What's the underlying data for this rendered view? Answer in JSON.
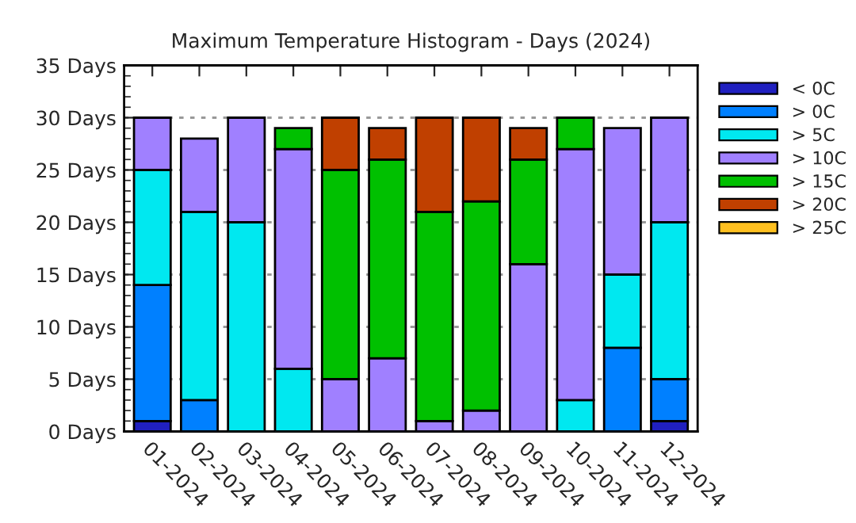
{
  "chart_data": {
    "type": "bar",
    "title": "Maximum Temperature Histogram - Days (2024)",
    "categories": [
      "01-2024",
      "02-2024",
      "03-2024",
      "04-2024",
      "05-2024",
      "06-2024",
      "07-2024",
      "08-2024",
      "09-2024",
      "10-2024",
      "11-2024",
      "12-2024"
    ],
    "stacked": true,
    "series": [
      {
        "name": "< 0C",
        "color": "#2020c0",
        "values": [
          1,
          0,
          0,
          0,
          0,
          0,
          0,
          0,
          0,
          0,
          0,
          1
        ]
      },
      {
        "name": "> 0C",
        "color": "#0080ff",
        "values": [
          13,
          3,
          0,
          0,
          0,
          0,
          0,
          0,
          0,
          0,
          8,
          4
        ]
      },
      {
        "name": "> 5C",
        "color": "#00e8f0",
        "values": [
          11,
          18,
          20,
          6,
          0,
          0,
          0,
          0,
          0,
          3,
          7,
          15
        ]
      },
      {
        "name": "> 10C",
        "color": "#a080ff",
        "values": [
          5,
          7,
          10,
          21,
          5,
          7,
          1,
          2,
          16,
          24,
          14,
          10
        ]
      },
      {
        "name": "> 15C",
        "color": "#00c000",
        "values": [
          0,
          0,
          0,
          2,
          20,
          19,
          20,
          20,
          10,
          3,
          0,
          0
        ]
      },
      {
        "name": "> 20C",
        "color": "#c04000",
        "values": [
          0,
          0,
          0,
          0,
          5,
          3,
          9,
          8,
          3,
          0,
          0,
          0
        ]
      },
      {
        "name": "> 25C",
        "color": "#ffc020",
        "values": [
          0,
          0,
          0,
          0,
          0,
          0,
          0,
          0,
          0,
          0,
          0,
          0
        ]
      }
    ],
    "ylim": [
      0,
      35
    ],
    "yticks": [
      {
        "value": 0,
        "label": "0 Days"
      },
      {
        "value": 5,
        "label": "5 Days"
      },
      {
        "value": 10,
        "label": "10 Days"
      },
      {
        "value": 15,
        "label": "15 Days"
      },
      {
        "value": 20,
        "label": "20 Days"
      },
      {
        "value": 25,
        "label": "25 Days"
      },
      {
        "value": 30,
        "label": "30 Days"
      },
      {
        "value": 35,
        "label": "35 Days"
      }
    ],
    "grid": "y",
    "legend": "top right"
  }
}
